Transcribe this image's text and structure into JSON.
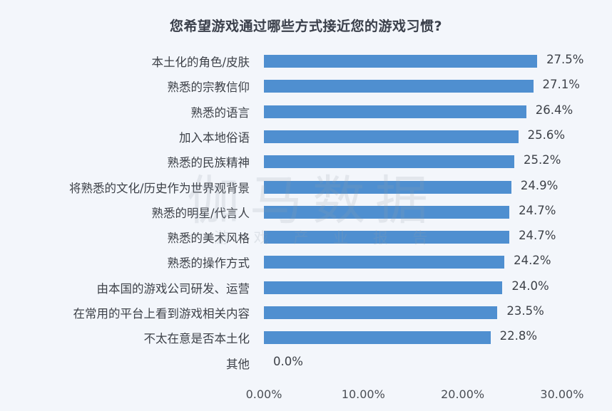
{
  "chart_data": {
    "type": "bar",
    "orientation": "horizontal",
    "title": "您希望游戏通过哪些方式接近您的游戏习惯?",
    "xlabel": "",
    "ylabel": "",
    "xlim": [
      0,
      30
    ],
    "grid": false,
    "legend": null,
    "bar_color": "#4f8fd0",
    "categories": [
      "本土化的角色/皮肤",
      "熟悉的宗教信仰",
      "熟悉的语言",
      "加入本地俗语",
      "熟悉的民族精神",
      "将熟悉的文化/历史作为世界观背景",
      "熟悉的明星/代言人",
      "熟悉的美术风格",
      "熟悉的操作方式",
      "由本国的游戏公司研发、运营",
      "在常用的平台上看到游戏相关内容",
      "不太在意是否本土化",
      "其他"
    ],
    "values": [
      27.5,
      27.1,
      26.4,
      25.6,
      25.2,
      24.9,
      24.7,
      24.7,
      24.2,
      24.0,
      23.5,
      22.8,
      0.0
    ],
    "value_labels": [
      "27.5%",
      "27.1%",
      "26.4%",
      "25.6%",
      "25.2%",
      "24.9%",
      "24.7%",
      "24.7%",
      "24.2%",
      "24.0%",
      "23.5%",
      "22.8%",
      "0.0%"
    ],
    "x_ticks": [
      0,
      10,
      20,
      30
    ],
    "x_tick_labels": [
      "0.00%",
      "10.00%",
      "20.00%",
      "30.00%"
    ]
  },
  "watermark": {
    "main": "伽马数据",
    "sub": "游 戏 产 业 报 告"
  }
}
